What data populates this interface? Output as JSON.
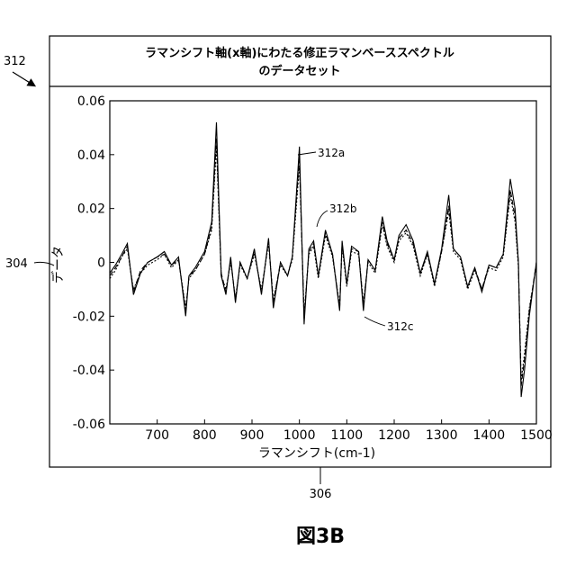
{
  "figure": {
    "ref_box": "312",
    "ref_yaxis": "304",
    "ref_xaxis": "306",
    "caption": "図3B"
  },
  "chart_data": {
    "type": "line",
    "title_line1": "ラマンシフト軸(x軸)にわたる修正ラマンベーススペクトル",
    "title_line2": "のデータセット",
    "xlabel": "ラマンシフト(cm-1)",
    "ylabel": "データ",
    "xlim": [
      600,
      1500
    ],
    "ylim": [
      -0.06,
      0.06
    ],
    "xticks": [
      700,
      800,
      900,
      1000,
      1100,
      1200,
      1300,
      1400,
      1500
    ],
    "xtick_labels": [
      "700",
      "800",
      "900",
      "1000",
      "1100",
      "1200",
      "1300",
      "1400",
      "1500"
    ],
    "yticks": [
      0.06,
      0.04,
      0.02,
      0,
      -0.02,
      -0.04,
      -0.06
    ],
    "ytick_labels": [
      "0.06",
      "0.04",
      "0.02",
      "0",
      "-0.02",
      "-0.04",
      "-0.06"
    ],
    "grid": false,
    "legend": "none",
    "x": [
      600,
      612,
      625,
      637,
      650,
      665,
      680,
      700,
      715,
      730,
      745,
      760,
      767,
      780,
      800,
      815,
      825,
      835,
      845,
      855,
      865,
      875,
      890,
      905,
      920,
      935,
      945,
      960,
      975,
      985,
      1000,
      1010,
      1020,
      1030,
      1040,
      1055,
      1070,
      1085,
      1090,
      1100,
      1110,
      1125,
      1135,
      1145,
      1160,
      1175,
      1185,
      1200,
      1210,
      1225,
      1240,
      1255,
      1270,
      1285,
      1300,
      1315,
      1325,
      1340,
      1355,
      1370,
      1385,
      1400,
      1415,
      1430,
      1445,
      1455,
      1462,
      1468,
      1475,
      1485,
      1500
    ],
    "series": [
      {
        "label": "312a",
        "dash": "solid",
        "values": [
          -0.004,
          -0.001,
          0.003,
          0.007,
          -0.012,
          -0.004,
          0.0,
          0.002,
          0.004,
          -0.001,
          0.002,
          -0.02,
          -0.005,
          -0.002,
          0.004,
          0.015,
          0.052,
          -0.005,
          -0.012,
          0.002,
          -0.015,
          0.0,
          -0.006,
          0.005,
          -0.012,
          0.009,
          -0.017,
          0.0,
          -0.005,
          0.002,
          0.043,
          -0.023,
          0.005,
          0.008,
          -0.005,
          0.012,
          0.003,
          -0.018,
          0.008,
          -0.008,
          0.006,
          0.004,
          -0.018,
          0.001,
          -0.003,
          0.017,
          0.008,
          0.001,
          0.01,
          0.014,
          0.008,
          -0.004,
          0.004,
          -0.008,
          0.005,
          0.025,
          0.005,
          0.002,
          -0.009,
          -0.002,
          -0.011,
          -0.001,
          -0.002,
          0.003,
          0.031,
          0.02,
          0.0,
          -0.05,
          -0.04,
          -0.02,
          0.0
        ]
      },
      {
        "label": "312b",
        "dash": "6 3",
        "values": [
          -0.005,
          -0.002,
          0.002,
          0.006,
          -0.011,
          -0.003,
          0.0,
          0.002,
          0.003,
          -0.001,
          0.001,
          -0.018,
          -0.005,
          -0.003,
          0.003,
          0.013,
          0.046,
          -0.004,
          -0.011,
          0.001,
          -0.014,
          0.0,
          -0.006,
          0.004,
          -0.011,
          0.008,
          -0.015,
          0.0,
          -0.005,
          0.002,
          0.039,
          -0.021,
          0.004,
          0.007,
          -0.005,
          0.011,
          0.003,
          -0.017,
          0.007,
          -0.008,
          0.005,
          0.004,
          -0.016,
          0.001,
          -0.003,
          0.015,
          0.007,
          0.001,
          0.009,
          0.012,
          0.007,
          -0.004,
          0.003,
          -0.008,
          0.004,
          0.021,
          0.005,
          0.002,
          -0.009,
          -0.002,
          -0.01,
          -0.001,
          -0.002,
          0.003,
          0.027,
          0.017,
          0.0,
          -0.046,
          -0.036,
          -0.018,
          0.0
        ]
      },
      {
        "label": "312c",
        "dash": "2 2",
        "values": [
          -0.006,
          -0.003,
          0.002,
          0.005,
          -0.01,
          -0.004,
          -0.001,
          0.001,
          0.003,
          -0.002,
          0.001,
          -0.017,
          -0.006,
          -0.003,
          0.003,
          0.012,
          0.043,
          -0.005,
          -0.01,
          0.0,
          -0.013,
          -0.001,
          -0.006,
          0.003,
          -0.01,
          0.007,
          -0.014,
          -0.001,
          -0.005,
          0.001,
          0.036,
          -0.019,
          0.003,
          0.006,
          -0.006,
          0.01,
          0.002,
          -0.016,
          0.006,
          -0.009,
          0.004,
          0.003,
          -0.015,
          0.0,
          -0.004,
          0.014,
          0.006,
          0.0,
          0.008,
          0.011,
          0.006,
          -0.005,
          0.003,
          -0.009,
          0.004,
          0.019,
          0.004,
          0.001,
          -0.01,
          -0.003,
          -0.01,
          -0.002,
          -0.003,
          0.002,
          0.025,
          0.015,
          -0.002,
          -0.044,
          -0.034,
          -0.017,
          -0.001
        ]
      }
    ]
  }
}
